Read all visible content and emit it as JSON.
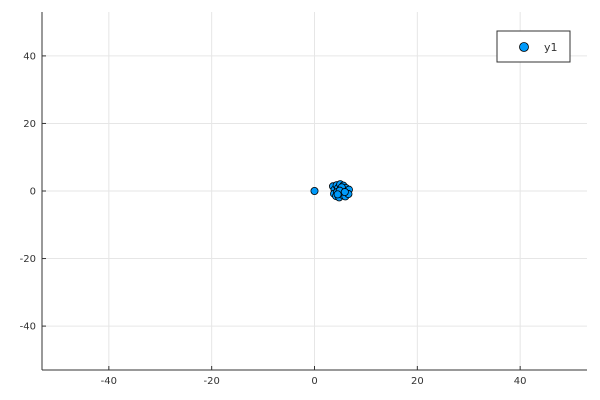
{
  "chart_data": {
    "type": "scatter",
    "title": "",
    "xlabel": "",
    "ylabel": "",
    "xlim": [
      -53,
      53
    ],
    "ylim": [
      -53,
      53
    ],
    "x_ticks": [
      -40,
      -20,
      0,
      20,
      40
    ],
    "y_ticks": [
      -40,
      -20,
      0,
      20,
      40
    ],
    "grid": true,
    "legend_position": "top-right",
    "series": [
      {
        "name": "y1",
        "color": "#009AFA",
        "points": [
          {
            "x": 0.0,
            "y": 0.0
          },
          {
            "x": 3.6,
            "y": 1.4
          },
          {
            "x": 3.9,
            "y": 0.4
          },
          {
            "x": 3.8,
            "y": -0.8
          },
          {
            "x": 4.3,
            "y": 1.7
          },
          {
            "x": 4.6,
            "y": 0.9
          },
          {
            "x": 4.4,
            "y": -0.3
          },
          {
            "x": 4.2,
            "y": -1.5
          },
          {
            "x": 5.0,
            "y": 2.0
          },
          {
            "x": 5.1,
            "y": 0.6
          },
          {
            "x": 5.0,
            "y": -0.8
          },
          {
            "x": 4.8,
            "y": -1.9
          },
          {
            "x": 5.6,
            "y": 1.6
          },
          {
            "x": 5.7,
            "y": 0.2
          },
          {
            "x": 5.5,
            "y": -1.2
          },
          {
            "x": 6.1,
            "y": 0.9
          },
          {
            "x": 6.3,
            "y": -0.4
          },
          {
            "x": 6.0,
            "y": -1.6
          },
          {
            "x": 6.7,
            "y": 0.4
          },
          {
            "x": 6.6,
            "y": -0.9
          },
          {
            "x": 5.3,
            "y": 1.1
          },
          {
            "x": 4.9,
            "y": 0.1
          },
          {
            "x": 5.9,
            "y": -0.3
          },
          {
            "x": 4.5,
            "y": -1.0
          }
        ]
      }
    ]
  }
}
